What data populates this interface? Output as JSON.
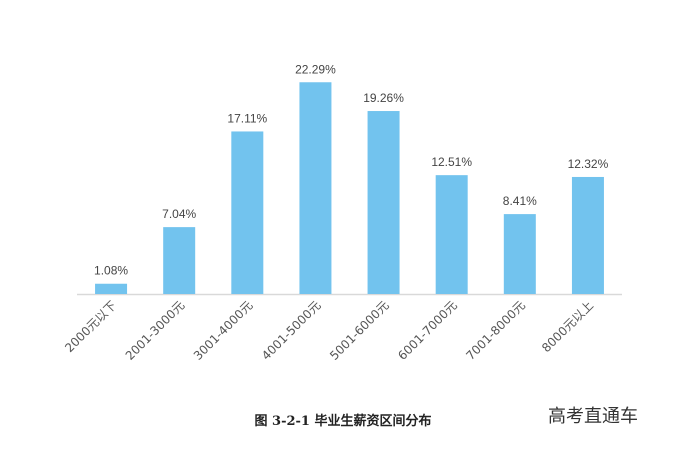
{
  "caption": "图 3-2-1   毕业生薪资区间分布",
  "watermark": "高考直通车",
  "chart_data": {
    "type": "bar",
    "categories": [
      "2000元以下",
      "2001-3000元",
      "3001-4000元",
      "4001-5000元",
      "5001-6000元",
      "6001-7000元",
      "7001-8000元",
      "8000元以上"
    ],
    "values": [
      1.08,
      7.04,
      17.11,
      22.29,
      19.26,
      12.51,
      8.41,
      12.32
    ],
    "data_labels": [
      "1.08%",
      "7.04%",
      "17.11%",
      "22.29%",
      "19.26%",
      "12.51%",
      "8.41%",
      "12.32%"
    ],
    "ylim": [
      0,
      25
    ],
    "grid": false,
    "bar_color": "#72C3EE",
    "axis_color": "#D9D9D9"
  }
}
